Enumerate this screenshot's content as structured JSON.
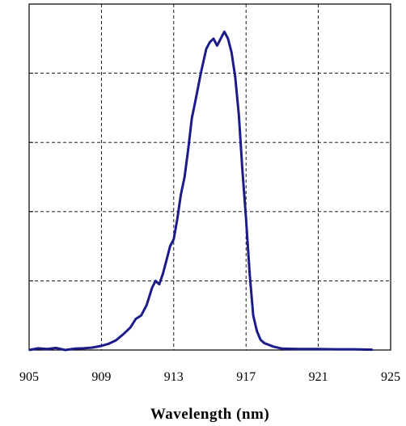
{
  "chart_data": {
    "type": "line",
    "title": "",
    "xlabel": "Wavelength (nm)",
    "ylabel": "",
    "xlim": [
      905,
      925
    ],
    "ylim": [
      0,
      1
    ],
    "grid": true,
    "xticks": [
      905,
      909,
      913,
      917,
      921,
      925
    ],
    "xtick_labels": [
      "905",
      "909",
      "913",
      "917",
      "921",
      "925"
    ],
    "y_gridlines": [
      0.2,
      0.4,
      0.6,
      0.8
    ],
    "series": [
      {
        "color": "#1b1b8a",
        "x": [
          905.0,
          905.5,
          906.0,
          906.5,
          907.0,
          907.5,
          908.0,
          908.5,
          909.0,
          909.4,
          909.8,
          910.2,
          910.6,
          910.9,
          911.2,
          911.5,
          911.8,
          912.0,
          912.2,
          912.4,
          912.6,
          912.8,
          913.0,
          913.2,
          913.4,
          913.6,
          913.8,
          914.0,
          914.2,
          914.5,
          914.8,
          915.0,
          915.2,
          915.4,
          915.6,
          915.8,
          916.0,
          916.2,
          916.4,
          916.6,
          916.8,
          917.0,
          917.2,
          917.4,
          917.6,
          917.8,
          918.0,
          918.5,
          919.0,
          920.0,
          921.0,
          922.0,
          923.0,
          924.0
        ],
        "y": [
          0.0,
          0.005,
          0.003,
          0.006,
          0.0,
          0.004,
          0.005,
          0.007,
          0.012,
          0.018,
          0.028,
          0.045,
          0.065,
          0.09,
          0.1,
          0.13,
          0.18,
          0.2,
          0.19,
          0.22,
          0.26,
          0.3,
          0.32,
          0.38,
          0.45,
          0.5,
          0.58,
          0.67,
          0.72,
          0.8,
          0.87,
          0.89,
          0.9,
          0.88,
          0.9,
          0.92,
          0.9,
          0.86,
          0.79,
          0.68,
          0.52,
          0.38,
          0.22,
          0.1,
          0.055,
          0.03,
          0.02,
          0.01,
          0.004,
          0.003,
          0.003,
          0.002,
          0.002,
          0.001
        ]
      }
    ]
  }
}
